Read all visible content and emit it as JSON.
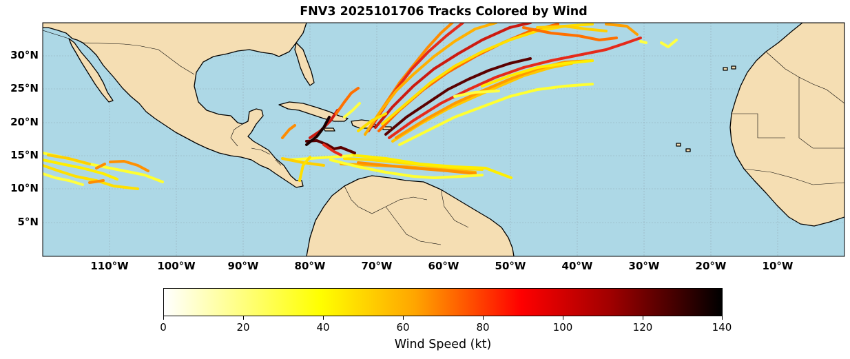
{
  "title": "FNV3 2025101706 Tracks Colored by Wind",
  "lat_labels": [
    "30°N",
    "25°N",
    "20°N",
    "15°N",
    "10°N",
    "5°N"
  ],
  "lon_labels": [
    "110°W",
    "100°W",
    "90°W",
    "80°W",
    "70°W",
    "60°W",
    "50°W",
    "40°W",
    "30°W",
    "20°W",
    "10°W"
  ],
  "colorbar": {
    "label": "Wind Speed (kt)",
    "ticks": [
      "0",
      "20",
      "40",
      "60",
      "80",
      "100",
      "120",
      "140"
    ],
    "colormap": [
      "#ffffff",
      "#ffff00",
      "#ff8c00",
      "#ff0000",
      "#000000"
    ]
  },
  "colors": {
    "ocean": "#add8e6",
    "land": "#f5deb3",
    "coast": "#000000"
  }
}
